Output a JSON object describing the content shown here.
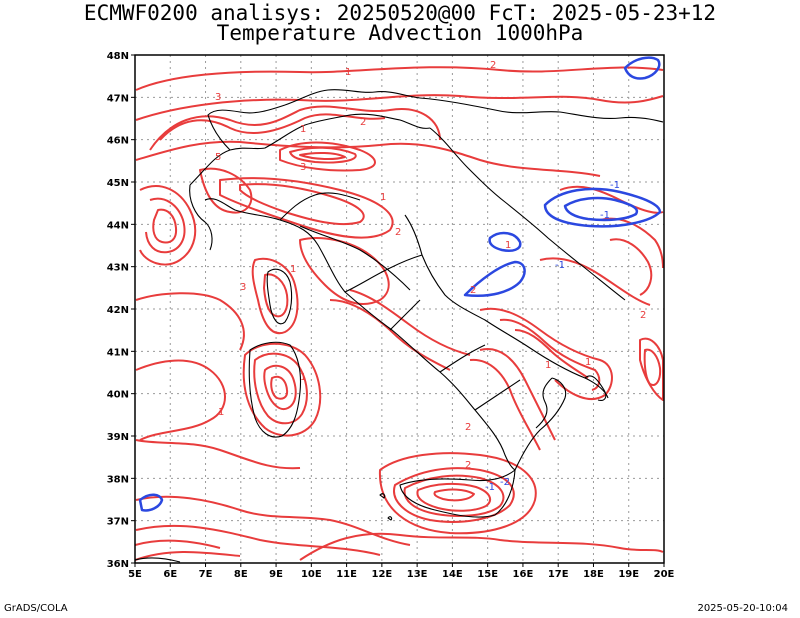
{
  "title_line1": "ECMWF0200 analisys: 20250520@00 FcT: 2025-05-23+12",
  "title_line2": "Temperature Advection 1000hPa",
  "footer_left": "GrADS/COLA",
  "footer_right": "2025-05-20-10:04",
  "map": {
    "lon_range": [
      5,
      20
    ],
    "lat_range": [
      36,
      48
    ],
    "lon_labels": [
      "5E",
      "6E",
      "7E",
      "8E",
      "9E",
      "10E",
      "11E",
      "12E",
      "13E",
      "14E",
      "15E",
      "16E",
      "17E",
      "18E",
      "19E",
      "20E"
    ],
    "lat_labels": [
      "36N",
      "37N",
      "38N",
      "39N",
      "40N",
      "41N",
      "42N",
      "43N",
      "44N",
      "45N",
      "46N",
      "47N",
      "48N"
    ],
    "grid": true,
    "colors": {
      "positive": "#e83c3c",
      "negative": "#2b48e0",
      "coast": "#000000",
      "grid": "#9a9a9a"
    },
    "contour_labels": [
      "1",
      "2",
      "3",
      "5",
      "1",
      "2",
      "3",
      "1",
      "2",
      "1",
      "1",
      "2",
      "3",
      "1",
      "2",
      "-1",
      "-2",
      "-1",
      "-1",
      "-1",
      "1",
      "2",
      "1",
      "1",
      "2"
    ]
  }
}
